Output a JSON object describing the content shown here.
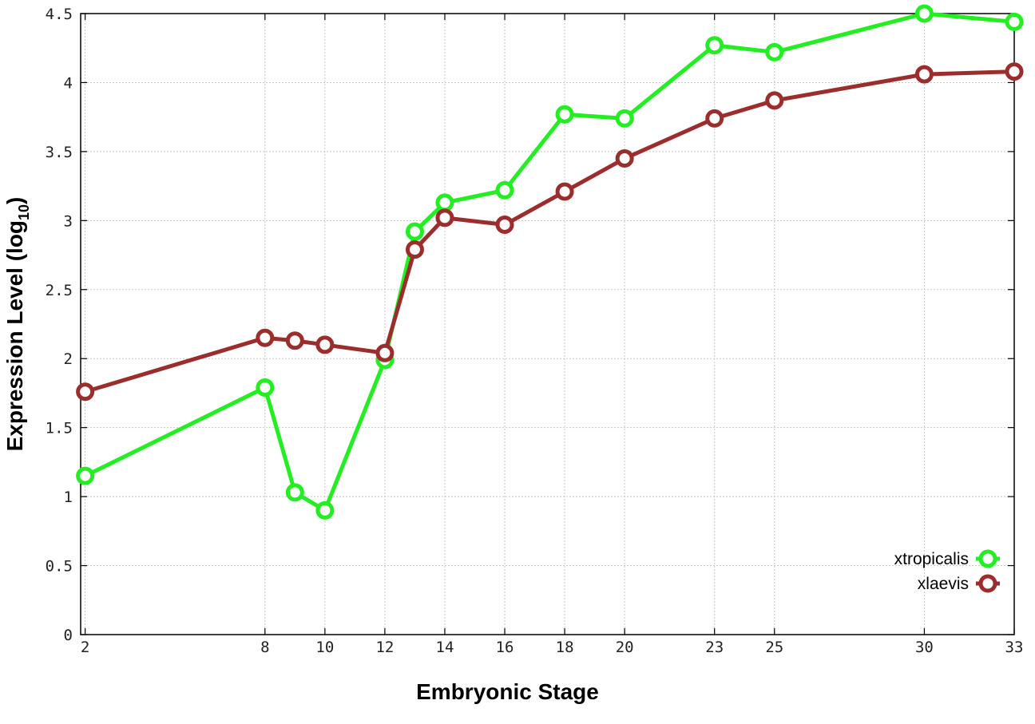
{
  "chart_data": {
    "type": "line",
    "xlabel": "Embryonic Stage",
    "ylabel": "Expression Level (log",
    "ylabel_subscript": "10",
    "ylabel_suffix": ")",
    "x": [
      2,
      8,
      9,
      10,
      12,
      13,
      14,
      16,
      18,
      20,
      23,
      25,
      30,
      33
    ],
    "x_tick_labels": [
      "2",
      "8",
      "10",
      "12",
      "14",
      "16",
      "18",
      "20",
      "23",
      "25",
      "30",
      "33"
    ],
    "x_tick_values": [
      2,
      8,
      10,
      12,
      14,
      16,
      18,
      20,
      23,
      25,
      30,
      33
    ],
    "y_tick_labels": [
      "0",
      "0.5",
      "1",
      "1.5",
      "2",
      "2.5",
      "3",
      "3.5",
      "4",
      "4.5"
    ],
    "y_tick_values": [
      0,
      0.5,
      1,
      1.5,
      2,
      2.5,
      3,
      3.5,
      4,
      4.5
    ],
    "ylim": [
      0,
      4.5
    ],
    "grid": true,
    "legend_position": "bottom-right",
    "series": [
      {
        "name": "xtropicalis",
        "color": "#22ee22",
        "values": [
          1.15,
          1.79,
          1.03,
          0.9,
          1.99,
          2.92,
          3.13,
          3.22,
          3.77,
          3.74,
          4.27,
          4.22,
          4.5,
          4.44
        ]
      },
      {
        "name": "xlaevis",
        "color": "#9b2d2d",
        "values": [
          1.76,
          2.15,
          2.13,
          2.1,
          2.04,
          2.79,
          3.02,
          2.97,
          3.21,
          3.45,
          3.74,
          3.87,
          4.06,
          4.08
        ]
      }
    ]
  }
}
